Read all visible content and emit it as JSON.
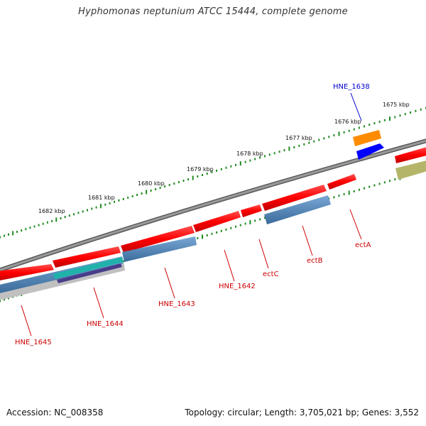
{
  "title": "Hyphomonas neptunium ATCC 15444, complete genome",
  "footer": {
    "accession": "Accession: NC_008358",
    "stats": "Topology: circular; Length: 3,705,021 bp; Genes: 3,552"
  },
  "kbp_ticks": [
    "1675 kbp",
    "1676 kbp",
    "1677 kbp",
    "1678 kbp",
    "1679 kbp",
    "1680 kbp",
    "1681 kbp",
    "1682 kbp"
  ],
  "gene_labels": [
    {
      "name": "HNE_1638",
      "color": "#0000cc"
    },
    {
      "name": "ectA",
      "color": "#cc0000"
    },
    {
      "name": "ectB",
      "color": "#cc0000"
    },
    {
      "name": "ectC",
      "color": "#cc0000"
    },
    {
      "name": "HNE_1642",
      "color": "#cc0000"
    },
    {
      "name": "HNE_1643",
      "color": "#cc0000"
    },
    {
      "name": "HNE_1644",
      "color": "#cc0000"
    },
    {
      "name": "HNE_1645",
      "color": "#cc0000"
    }
  ],
  "colors": {
    "cds": "#ff0000",
    "blue_track": "#4682b4",
    "tick": "#228b22",
    "backbone": "#808080",
    "orange_feature": "#ff8c00",
    "blue_feature": "#0000ff",
    "olive_feature": "#b5b56a",
    "teal_feature": "#20b2aa"
  }
}
